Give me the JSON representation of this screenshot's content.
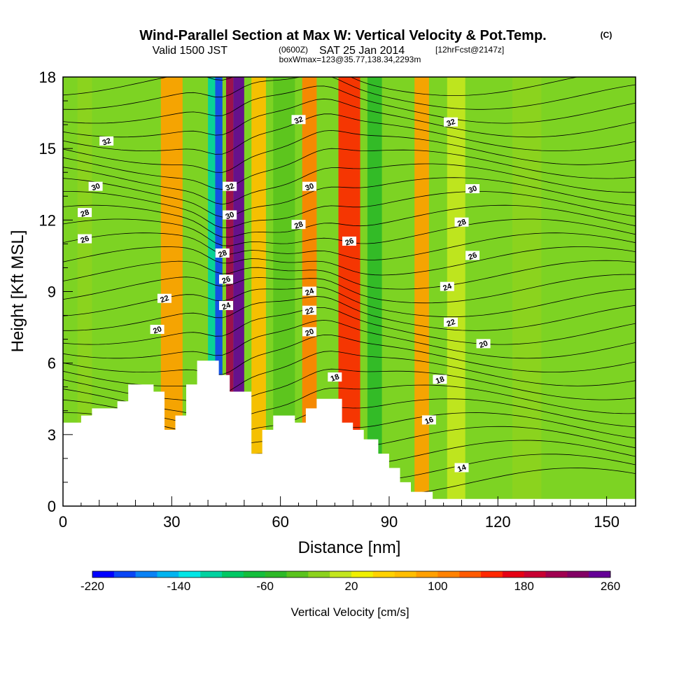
{
  "title": "Wind-Parallel Section at Max W: Vertical Velocity & Pot.Temp.",
  "title_mark": "(C)",
  "subtitle": {
    "valid": "Valid 1500 JST",
    "zulu": "(0600Z)",
    "date": "SAT 25 Jan 2014",
    "fcst": "[12hrFcst@2147z]",
    "box": "boxWmax=123@35.77,138.34,2293m"
  },
  "chart_data": {
    "type": "heatmap",
    "xlabel": "Distance [nm]",
    "ylabel": "Height [Kft MSL]",
    "xlim": [
      0,
      158
    ],
    "ylim": [
      0,
      18
    ],
    "xticks": [
      {
        "v": 0,
        "label": "0"
      },
      {
        "v": 30,
        "label": "30"
      },
      {
        "v": 60,
        "label": "60"
      },
      {
        "v": 90,
        "label": "90"
      },
      {
        "v": 120,
        "label": "120"
      },
      {
        "v": 150,
        "label": "150"
      }
    ],
    "yticks": [
      {
        "v": 0,
        "label": "0"
      },
      {
        "v": 3,
        "label": "3"
      },
      {
        "v": 6,
        "label": "6"
      },
      {
        "v": 9,
        "label": "9"
      },
      {
        "v": 12,
        "label": "12"
      },
      {
        "v": 15,
        "label": "15"
      },
      {
        "v": 18,
        "label": "18"
      }
    ],
    "colorbar": {
      "label": "Vertical Velocity [cm/s]",
      "colors": [
        "#0000ff",
        "#0a46f5",
        "#0a82f5",
        "#00b4f0",
        "#00e6e6",
        "#00d2a0",
        "#00c864",
        "#14be3c",
        "#2db928",
        "#5ac31e",
        "#8cd21e",
        "#c3e61e",
        "#f0f000",
        "#ffd200",
        "#ffbe00",
        "#ffa000",
        "#ff8200",
        "#ff5a00",
        "#ff2800",
        "#e60014",
        "#c80032",
        "#a00050",
        "#820064",
        "#640096"
      ],
      "ticks": [
        {
          "pos": 0,
          "label": "-220"
        },
        {
          "pos": 4,
          "label": "-140"
        },
        {
          "pos": 8,
          "label": "-60"
        },
        {
          "pos": 12,
          "label": "20"
        },
        {
          "pos": 16,
          "label": "100"
        },
        {
          "pos": 20,
          "label": "180"
        },
        {
          "pos": 24,
          "label": "260"
        }
      ]
    },
    "velocity_bands": [
      {
        "x": 4,
        "w": 4,
        "value": -40
      },
      {
        "x": 27,
        "w": 6,
        "value": 60
      },
      {
        "x": 40,
        "w": 2,
        "value": -140
      },
      {
        "x": 42,
        "w": 2,
        "value": -220
      },
      {
        "x": 45,
        "w": 2,
        "value": 180
      },
      {
        "x": 47,
        "w": 3,
        "value": 280
      },
      {
        "x": 52,
        "w": 4,
        "value": 40
      },
      {
        "x": 58,
        "w": 6,
        "value": -60
      },
      {
        "x": 66,
        "w": 4,
        "value": 80
      },
      {
        "x": 76,
        "w": 6,
        "value": 120
      },
      {
        "x": 84,
        "w": 4,
        "value": -80
      },
      {
        "x": 97,
        "w": 4,
        "value": 60
      },
      {
        "x": 106,
        "w": 5,
        "value": -20
      },
      {
        "x": 124,
        "w": 8,
        "value": -40
      }
    ],
    "contour_labels": [
      {
        "x": 12,
        "y": 15.3,
        "label": "32"
      },
      {
        "x": 9,
        "y": 13.4,
        "label": "30"
      },
      {
        "x": 6,
        "y": 12.3,
        "label": "28"
      },
      {
        "x": 6,
        "y": 11.2,
        "label": "26"
      },
      {
        "x": 28,
        "y": 8.7,
        "label": "22"
      },
      {
        "x": 26,
        "y": 7.4,
        "label": "20"
      },
      {
        "x": 46,
        "y": 13.4,
        "label": "32"
      },
      {
        "x": 46,
        "y": 12.2,
        "label": "30"
      },
      {
        "x": 44,
        "y": 10.6,
        "label": "28"
      },
      {
        "x": 45,
        "y": 9.5,
        "label": "26"
      },
      {
        "x": 45,
        "y": 8.4,
        "label": "24"
      },
      {
        "x": 65,
        "y": 16.2,
        "label": "32"
      },
      {
        "x": 68,
        "y": 13.4,
        "label": "30"
      },
      {
        "x": 65,
        "y": 11.8,
        "label": "28"
      },
      {
        "x": 79,
        "y": 11.1,
        "label": "26"
      },
      {
        "x": 68,
        "y": 9.0,
        "label": "24"
      },
      {
        "x": 68,
        "y": 8.2,
        "label": "22"
      },
      {
        "x": 68,
        "y": 7.3,
        "label": "20"
      },
      {
        "x": 75,
        "y": 5.4,
        "label": "18"
      },
      {
        "x": 107,
        "y": 16.1,
        "label": "32"
      },
      {
        "x": 113,
        "y": 13.3,
        "label": "30"
      },
      {
        "x": 110,
        "y": 11.9,
        "label": "28"
      },
      {
        "x": 113,
        "y": 10.5,
        "label": "26"
      },
      {
        "x": 106,
        "y": 9.2,
        "label": "24"
      },
      {
        "x": 107,
        "y": 7.7,
        "label": "22"
      },
      {
        "x": 116,
        "y": 6.8,
        "label": "20"
      },
      {
        "x": 104,
        "y": 5.3,
        "label": "18"
      },
      {
        "x": 101,
        "y": 3.6,
        "label": "16"
      },
      {
        "x": 110,
        "y": 1.6,
        "label": "14"
      }
    ]
  }
}
